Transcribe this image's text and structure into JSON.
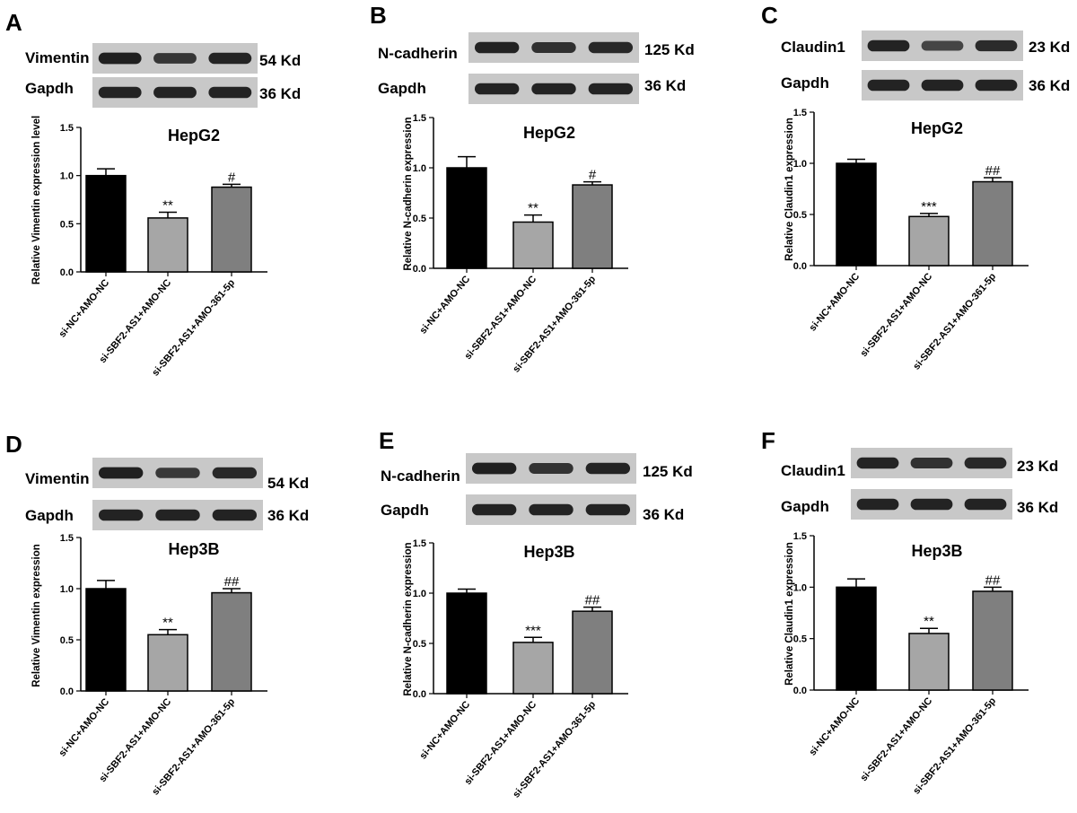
{
  "colors": {
    "bar1": "#000000",
    "bar2": "#a6a6a6",
    "bar3": "#7f7f7f",
    "blot_bg": "#c8c8c8",
    "band": "#1a1a1a"
  },
  "chart_data": [
    {
      "panel": "A",
      "type": "bar",
      "title": "HepG2",
      "ylabel": "Relative Vimentin expression level",
      "ylim": [
        0,
        1.5
      ],
      "yticks": [
        "0.0",
        "0.5",
        "1.0",
        "1.5"
      ],
      "categories": [
        "si-NC+AMO-NC",
        "si-SBF2-AS1+AMO-NC",
        "si-SBF2-AS1+AMO-361-5p"
      ],
      "values": [
        1.0,
        0.56,
        0.88
      ],
      "errors": [
        0.07,
        0.06,
        0.03
      ],
      "significance": [
        "",
        "**",
        "#"
      ],
      "blots": [
        {
          "protein": "Vimentin",
          "size": "54 Kd",
          "intensity": [
            0.95,
            0.75,
            0.9
          ]
        },
        {
          "protein": "Gapdh",
          "size": "36 Kd",
          "intensity": [
            0.92,
            0.92,
            0.92
          ]
        }
      ]
    },
    {
      "panel": "B",
      "type": "bar",
      "title": "HepG2",
      "ylabel": "Relative N-cadherin expression",
      "ylim": [
        0,
        1.5
      ],
      "yticks": [
        "0.0",
        "0.5",
        "1.0",
        "1.5"
      ],
      "categories": [
        "si-NC+AMO-NC",
        "si-SBF2-AS1+AMO-NC",
        "si-SBF2-AS1+AMO-361-5p"
      ],
      "values": [
        1.0,
        0.46,
        0.83
      ],
      "errors": [
        0.11,
        0.07,
        0.03
      ],
      "significance": [
        "",
        "**",
        "#"
      ],
      "blots": [
        {
          "protein": "N-cadherin",
          "size": "125 Kd",
          "intensity": [
            0.92,
            0.82,
            0.88
          ]
        },
        {
          "protein": "Gapdh",
          "size": "36 Kd",
          "intensity": [
            0.92,
            0.92,
            0.92
          ]
        }
      ]
    },
    {
      "panel": "C",
      "type": "bar",
      "title": "HepG2",
      "ylabel": "Relative Claudin1 expression",
      "ylim": [
        0,
        1.5
      ],
      "yticks": [
        "0.0",
        "0.5",
        "1.0",
        "1.5"
      ],
      "categories": [
        "si-NC+AMO-NC",
        "si-SBF2-AS1+AMO-NC",
        "si-SBF2-AS1+AMO-361-5p"
      ],
      "values": [
        1.0,
        0.48,
        0.82
      ],
      "errors": [
        0.04,
        0.03,
        0.04
      ],
      "significance": [
        "",
        "***",
        "##"
      ],
      "blots": [
        {
          "protein": "Claudin1",
          "size": "23 Kd",
          "intensity": [
            0.92,
            0.62,
            0.85
          ]
        },
        {
          "protein": "Gapdh",
          "size": "36 Kd",
          "intensity": [
            0.92,
            0.92,
            0.92
          ]
        }
      ]
    },
    {
      "panel": "D",
      "type": "bar",
      "title": "Hep3B",
      "ylabel": "Relative Vimentin expression",
      "ylim": [
        0,
        1.5
      ],
      "yticks": [
        "0.0",
        "0.5",
        "1.0",
        "1.5"
      ],
      "categories": [
        "si-NC+AMO-NC",
        "si-SBF2-AS1+AMO-NC",
        "si-SBF2-AS1+AMO-361-5p"
      ],
      "values": [
        1.0,
        0.55,
        0.96
      ],
      "errors": [
        0.08,
        0.05,
        0.04
      ],
      "significance": [
        "",
        "**",
        "##"
      ],
      "blots": [
        {
          "protein": "Vimentin",
          "size": "54 Kd",
          "intensity": [
            0.95,
            0.72,
            0.88
          ]
        },
        {
          "protein": "Gapdh",
          "size": "36 Kd",
          "intensity": [
            0.92,
            0.92,
            0.92
          ]
        }
      ]
    },
    {
      "panel": "E",
      "type": "bar",
      "title": "Hep3B",
      "ylabel": "Relative N-cadherin expression",
      "ylim": [
        0,
        1.5
      ],
      "yticks": [
        "0.0",
        "0.5",
        "1.0",
        "1.5"
      ],
      "categories": [
        "si-NC+AMO-NC",
        "si-SBF2-AS1+AMO-NC",
        "si-SBF2-AS1+AMO-361-5p"
      ],
      "values": [
        1.0,
        0.51,
        0.82
      ],
      "errors": [
        0.04,
        0.05,
        0.04
      ],
      "significance": [
        "",
        "***",
        "##"
      ],
      "blots": [
        {
          "protein": "N-cadherin",
          "size": "125 Kd",
          "intensity": [
            0.95,
            0.78,
            0.9
          ]
        },
        {
          "protein": "Gapdh",
          "size": "36 Kd",
          "intensity": [
            0.92,
            0.92,
            0.92
          ]
        }
      ]
    },
    {
      "panel": "F",
      "type": "bar",
      "title": "Hep3B",
      "ylabel": "Relative Claudin1 expression",
      "ylim": [
        0,
        1.5
      ],
      "yticks": [
        "0.0",
        "0.5",
        "1.0",
        "1.5"
      ],
      "categories": [
        "si-NC+AMO-NC",
        "si-SBF2-AS1+AMO-NC",
        "si-SBF2-AS1+AMO-361-5p"
      ],
      "values": [
        1.0,
        0.55,
        0.96
      ],
      "errors": [
        0.08,
        0.05,
        0.04
      ],
      "significance": [
        "",
        "**",
        "##"
      ],
      "blots": [
        {
          "protein": "Claudin1",
          "size": "23 Kd",
          "intensity": [
            0.9,
            0.8,
            0.88
          ]
        },
        {
          "protein": "Gapdh",
          "size": "36 Kd",
          "intensity": [
            0.92,
            0.92,
            0.92
          ]
        }
      ]
    }
  ]
}
